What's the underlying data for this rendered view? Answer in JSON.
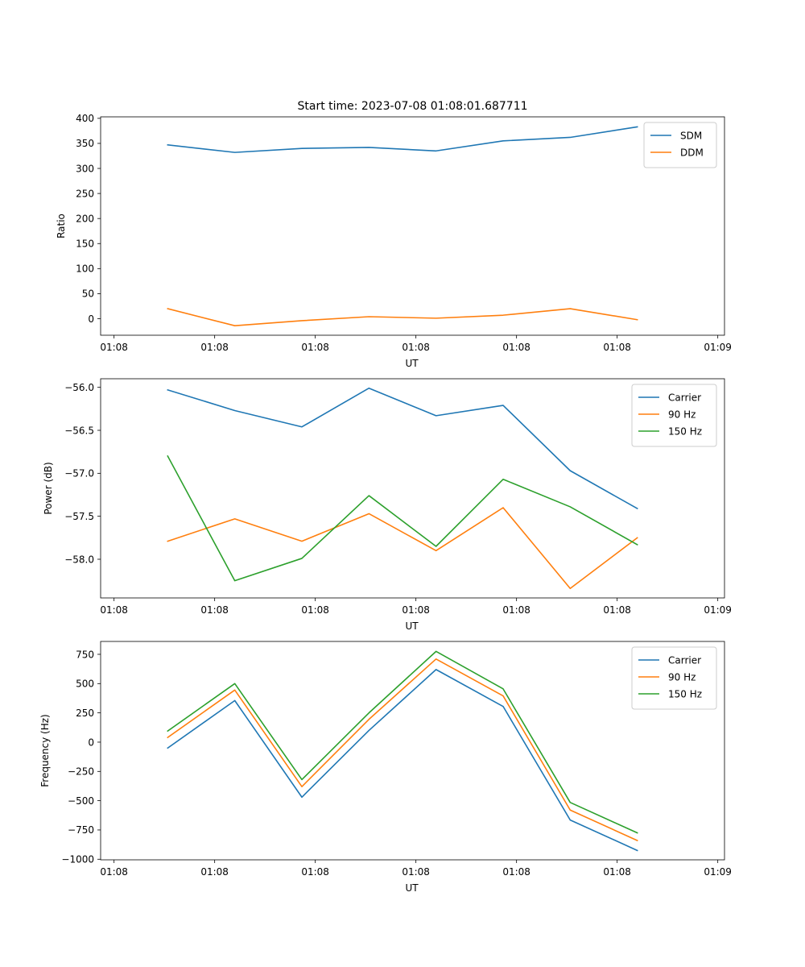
{
  "figure_title": "Start time: 2023-07-08 01:08:01.687711",
  "colors": {
    "blue": "#1f77b4",
    "orange": "#ff7f0e",
    "green": "#2ca02c"
  },
  "chart_data": [
    {
      "type": "line",
      "title": "Start time: 2023-07-08 01:08:01.687711",
      "xlabel": "UT",
      "ylabel": "Ratio",
      "x": [
        1,
        2,
        3,
        4,
        5,
        6,
        7,
        8
      ],
      "x_ticks": [
        0.2,
        1.7,
        3.2,
        4.7,
        6.2,
        7.7,
        9.2
      ],
      "x_tick_labels": [
        "01:08",
        "01:08",
        "01:08",
        "01:08",
        "01:08",
        "01:08",
        "01:09"
      ],
      "xlim": [
        0,
        9.3
      ],
      "ylim": [
        -33,
        403
      ],
      "y_ticks": [
        0,
        50,
        100,
        150,
        200,
        250,
        300,
        350,
        400
      ],
      "y_tick_labels": [
        "0",
        "50",
        "100",
        "150",
        "200",
        "250",
        "300",
        "350",
        "400"
      ],
      "legend": "top-right",
      "series": [
        {
          "name": "SDM",
          "color_key": "blue",
          "values": [
            347,
            332,
            340,
            342,
            335,
            355,
            362,
            383
          ]
        },
        {
          "name": "DDM",
          "color_key": "orange",
          "values": [
            20,
            -14,
            -4,
            4,
            1,
            7,
            20,
            -2
          ]
        }
      ]
    },
    {
      "type": "line",
      "title": "",
      "xlabel": "UT",
      "ylabel": "Power (dB)",
      "x": [
        1,
        2,
        3,
        4,
        5,
        6,
        7,
        8
      ],
      "x_ticks": [
        0.2,
        1.7,
        3.2,
        4.7,
        6.2,
        7.7,
        9.2
      ],
      "x_tick_labels": [
        "01:08",
        "01:08",
        "01:08",
        "01:08",
        "01:08",
        "01:08",
        "01:09"
      ],
      "xlim": [
        0,
        9.3
      ],
      "ylim": [
        -58.45,
        -55.9
      ],
      "y_ticks": [
        -58.0,
        -57.5,
        -57.0,
        -56.5,
        -56.0
      ],
      "y_tick_labels": [
        "−58.0",
        "−57.5",
        "−57.0",
        "−56.5",
        "−56.0"
      ],
      "legend": "top-right",
      "series": [
        {
          "name": "Carrier",
          "color_key": "blue",
          "values": [
            -56.03,
            -56.27,
            -56.46,
            -56.01,
            -56.33,
            -56.21,
            -56.97,
            -57.41
          ]
        },
        {
          "name": "90 Hz",
          "color_key": "orange",
          "values": [
            -57.79,
            -57.53,
            -57.79,
            -57.47,
            -57.9,
            -57.4,
            -58.34,
            -57.75
          ]
        },
        {
          "name": "150 Hz",
          "color_key": "green",
          "values": [
            -56.8,
            -58.25,
            -57.99,
            -57.26,
            -57.85,
            -57.07,
            -57.39,
            -57.83
          ]
        }
      ]
    },
    {
      "type": "line",
      "title": "",
      "xlabel": "UT",
      "ylabel": "Frequency (Hz)",
      "x": [
        1,
        2,
        3,
        4,
        5,
        6,
        7,
        8
      ],
      "x_ticks": [
        0.2,
        1.7,
        3.2,
        4.7,
        6.2,
        7.7,
        9.2
      ],
      "x_tick_labels": [
        "01:08",
        "01:08",
        "01:08",
        "01:08",
        "01:08",
        "01:08",
        "01:09"
      ],
      "xlim": [
        0,
        9.3
      ],
      "ylim": [
        -1005,
        860
      ],
      "y_ticks": [
        -1000,
        -750,
        -500,
        -250,
        0,
        250,
        500,
        750
      ],
      "y_tick_labels": [
        "−1000",
        "−750",
        "−500",
        "−250",
        "0",
        "250",
        "500",
        "750"
      ],
      "legend": "top-right",
      "series": [
        {
          "name": "Carrier",
          "color_key": "blue",
          "values": [
            -50,
            355,
            -470,
            100,
            620,
            305,
            -665,
            -925
          ]
        },
        {
          "name": "90 Hz",
          "color_key": "orange",
          "values": [
            40,
            445,
            -380,
            195,
            710,
            395,
            -580,
            -840
          ]
        },
        {
          "name": "150 Hz",
          "color_key": "green",
          "values": [
            95,
            500,
            -320,
            250,
            775,
            455,
            -515,
            -775
          ]
        }
      ]
    }
  ]
}
